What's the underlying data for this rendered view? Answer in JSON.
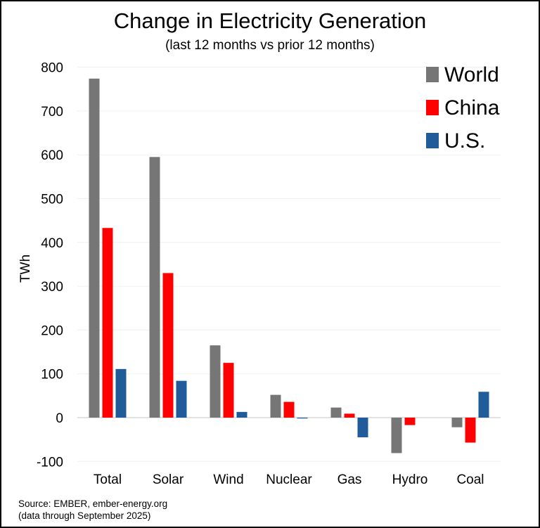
{
  "chart_data": {
    "type": "bar",
    "title": "Change in Electricity Generation",
    "subtitle": "(last 12 months vs prior 12 months)",
    "ylabel": "TWh",
    "xlabel": "",
    "ylim": [
      -100,
      800
    ],
    "yticks": [
      -100,
      0,
      100,
      200,
      300,
      400,
      500,
      600,
      700,
      800
    ],
    "grid": true,
    "legend": "top-right",
    "categories": [
      "Total",
      "Solar",
      "Wind",
      "Nuclear",
      "Gas",
      "Hydro",
      "Coal"
    ],
    "series": [
      {
        "name": "World",
        "color": "#767676",
        "values": [
          774,
          595,
          165,
          52,
          23,
          -81,
          -22
        ]
      },
      {
        "name": "China",
        "color": "#ff0000",
        "values": [
          433,
          330,
          125,
          36,
          9,
          -17,
          -57
        ]
      },
      {
        "name": "U.S.",
        "color": "#1f5c99",
        "values": [
          111,
          84,
          13,
          -2,
          -45,
          0,
          59
        ]
      }
    ]
  },
  "source": "Source: EMBER, ember-energy.org",
  "note": "(data through September 2025)"
}
